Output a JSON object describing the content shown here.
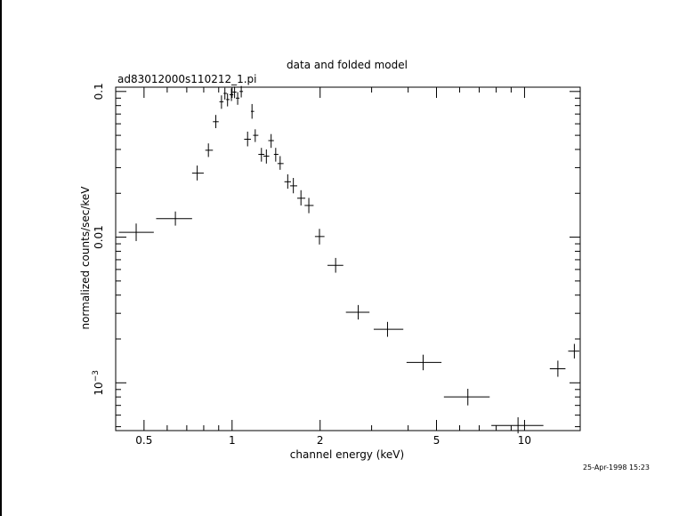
{
  "chart_data": {
    "type": "scatter",
    "title": "data and folded model",
    "subtitle": "ad83012000s110212_1.pi",
    "xlabel": "channel energy (keV)",
    "ylabel": "normalized counts/sec/keV",
    "timestamp": "25-Apr-1998 15:23",
    "xscale": "log",
    "yscale": "log",
    "xlim": [
      0.4,
      15.5
    ],
    "ylim": [
      0.00047,
      0.107
    ],
    "grid": false,
    "x_major_ticks": [
      {
        "value": 0.5,
        "label": "0.5"
      },
      {
        "value": 1,
        "label": "1"
      },
      {
        "value": 2,
        "label": "2"
      },
      {
        "value": 5,
        "label": "5"
      },
      {
        "value": 10,
        "label": "10"
      }
    ],
    "x_minor_ticks": [
      0.4,
      0.6,
      0.7,
      0.8,
      0.9,
      3,
      4,
      6,
      7,
      8,
      9,
      20
    ],
    "y_major_ticks": [
      {
        "value": 0.1,
        "label": "0.1"
      },
      {
        "value": 0.01,
        "label": "0.01"
      },
      {
        "value": 0.001,
        "label": "10",
        "superscript": "−3"
      }
    ],
    "y_minor_ticks": [
      0.0005,
      0.0006,
      0.0007,
      0.0008,
      0.0009,
      0.002,
      0.003,
      0.004,
      0.005,
      0.006,
      0.007,
      0.008,
      0.009,
      0.02,
      0.03,
      0.04,
      0.05,
      0.06,
      0.07,
      0.08,
      0.09
    ],
    "series": [
      {
        "points": [
          {
            "x": 0.47,
            "xlo": 0.41,
            "xhi": 0.54,
            "y": 0.0108,
            "ylo": 0.0094,
            "yhi": 0.0124
          },
          {
            "x": 0.64,
            "xlo": 0.55,
            "xhi": 0.73,
            "y": 0.0134,
            "ylo": 0.012,
            "yhi": 0.015
          },
          {
            "x": 0.76,
            "xlo": 0.73,
            "xhi": 0.8,
            "y": 0.0275,
            "ylo": 0.0245,
            "yhi": 0.031
          },
          {
            "x": 0.83,
            "xlo": 0.81,
            "xhi": 0.86,
            "y": 0.0395,
            "ylo": 0.0355,
            "yhi": 0.044
          },
          {
            "x": 0.88,
            "xlo": 0.86,
            "xhi": 0.9,
            "y": 0.062,
            "ylo": 0.056,
            "yhi": 0.069
          },
          {
            "x": 0.92,
            "xlo": 0.905,
            "xhi": 0.935,
            "y": 0.085,
            "ylo": 0.076,
            "yhi": 0.094
          },
          {
            "x": 0.945,
            "xlo": 0.935,
            "xhi": 0.96,
            "y": 0.097,
            "ylo": 0.088,
            "yhi": 0.106
          },
          {
            "x": 0.965,
            "xlo": 0.955,
            "xhi": 0.98,
            "y": 0.088,
            "ylo": 0.079,
            "yhi": 0.097
          },
          {
            "x": 0.995,
            "xlo": 0.98,
            "xhi": 1.01,
            "y": 0.095,
            "ylo": 0.086,
            "yhi": 0.105
          },
          {
            "x": 1.02,
            "xlo": 1.005,
            "xhi": 1.035,
            "y": 0.099,
            "ylo": 0.09,
            "yhi": 0.108
          },
          {
            "x": 1.045,
            "xlo": 1.03,
            "xhi": 1.06,
            "y": 0.09,
            "ylo": 0.081,
            "yhi": 0.099
          },
          {
            "x": 1.075,
            "xlo": 1.06,
            "xhi": 1.09,
            "y": 0.1,
            "ylo": 0.091,
            "yhi": 0.109
          },
          {
            "x": 1.13,
            "xlo": 1.1,
            "xhi": 1.16,
            "y": 0.047,
            "ylo": 0.042,
            "yhi": 0.053
          },
          {
            "x": 1.17,
            "xlo": 1.16,
            "xhi": 1.19,
            "y": 0.073,
            "ylo": 0.065,
            "yhi": 0.082
          },
          {
            "x": 1.2,
            "xlo": 1.18,
            "xhi": 1.23,
            "y": 0.05,
            "ylo": 0.045,
            "yhi": 0.055
          },
          {
            "x": 1.26,
            "xlo": 1.23,
            "xhi": 1.29,
            "y": 0.037,
            "ylo": 0.033,
            "yhi": 0.041
          },
          {
            "x": 1.31,
            "xlo": 1.28,
            "xhi": 1.34,
            "y": 0.036,
            "ylo": 0.032,
            "yhi": 0.04
          },
          {
            "x": 1.36,
            "xlo": 1.33,
            "xhi": 1.39,
            "y": 0.046,
            "ylo": 0.041,
            "yhi": 0.051
          },
          {
            "x": 1.41,
            "xlo": 1.39,
            "xhi": 1.44,
            "y": 0.037,
            "ylo": 0.033,
            "yhi": 0.041
          },
          {
            "x": 1.46,
            "xlo": 1.43,
            "xhi": 1.5,
            "y": 0.032,
            "ylo": 0.029,
            "yhi": 0.036
          },
          {
            "x": 1.55,
            "xlo": 1.51,
            "xhi": 1.59,
            "y": 0.024,
            "ylo": 0.0215,
            "yhi": 0.027
          },
          {
            "x": 1.62,
            "xlo": 1.58,
            "xhi": 1.67,
            "y": 0.0225,
            "ylo": 0.02,
            "yhi": 0.0255
          },
          {
            "x": 1.72,
            "xlo": 1.67,
            "xhi": 1.78,
            "y": 0.0185,
            "ylo": 0.0165,
            "yhi": 0.021
          },
          {
            "x": 1.83,
            "xlo": 1.77,
            "xhi": 1.9,
            "y": 0.0165,
            "ylo": 0.0146,
            "yhi": 0.0186
          },
          {
            "x": 1.99,
            "xlo": 1.92,
            "xhi": 2.07,
            "y": 0.0101,
            "ylo": 0.0089,
            "yhi": 0.0114
          },
          {
            "x": 2.26,
            "xlo": 2.12,
            "xhi": 2.4,
            "y": 0.0064,
            "ylo": 0.0057,
            "yhi": 0.0072
          },
          {
            "x": 2.7,
            "xlo": 2.45,
            "xhi": 2.95,
            "y": 0.00305,
            "ylo": 0.00272,
            "yhi": 0.00342
          },
          {
            "x": 3.4,
            "xlo": 3.05,
            "xhi": 3.85,
            "y": 0.00233,
            "ylo": 0.00207,
            "yhi": 0.00262
          },
          {
            "x": 4.5,
            "xlo": 3.95,
            "xhi": 5.2,
            "y": 0.00138,
            "ylo": 0.00122,
            "yhi": 0.00156
          },
          {
            "x": 6.4,
            "xlo": 5.3,
            "xhi": 7.6,
            "y": 0.0008,
            "ylo": 0.0007,
            "yhi": 0.00091
          },
          {
            "x": 9.5,
            "xlo": 7.7,
            "xhi": 11.6,
            "y": 0.00051,
            "ylo": 0.00045,
            "yhi": 0.00058
          },
          {
            "x": 13.0,
            "xlo": 12.2,
            "xhi": 13.8,
            "y": 0.00125,
            "ylo": 0.0011,
            "yhi": 0.00142
          },
          {
            "x": 14.8,
            "xlo": 14.1,
            "xhi": 15.4,
            "y": 0.00165,
            "ylo": 0.00147,
            "yhi": 0.00185
          }
        ]
      }
    ]
  }
}
